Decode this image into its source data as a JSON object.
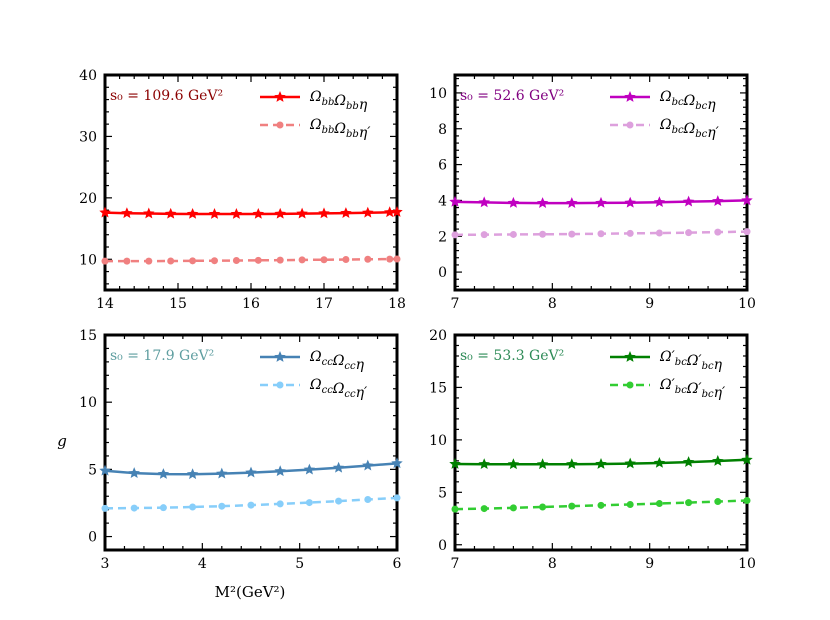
{
  "figure": {
    "ylabel": "g",
    "xlabel": "M²(GeV²)"
  },
  "chart_data": [
    {
      "type": "line",
      "xlim": [
        14,
        18
      ],
      "ylim": [
        5,
        40
      ],
      "xticks": [
        "14",
        "15",
        "16",
        "17",
        "18"
      ],
      "yticks": [
        "10",
        "20",
        "30",
        "40"
      ],
      "annotation": "s₀ = 109.6 GeV²",
      "annotation_color": "#8b0000",
      "legend_placement": "top-right",
      "series": [
        {
          "name": "ΩbbΩbbη",
          "color": "#ff0000",
          "dashed": false,
          "marker": "star",
          "x": [
            14.0,
            14.3,
            14.6,
            14.9,
            15.2,
            15.5,
            15.8,
            16.1,
            16.4,
            16.7,
            17.0,
            17.3,
            17.6,
            17.9,
            18.0
          ],
          "y": [
            17.6,
            17.5,
            17.45,
            17.4,
            17.38,
            17.37,
            17.37,
            17.38,
            17.4,
            17.43,
            17.47,
            17.52,
            17.58,
            17.65,
            17.7
          ]
        },
        {
          "name": "ΩbbΩbbη′",
          "color": "#f08080",
          "dashed": true,
          "marker": "circle",
          "x": [
            14.0,
            14.3,
            14.6,
            14.9,
            15.2,
            15.5,
            15.8,
            16.1,
            16.4,
            16.7,
            17.0,
            17.3,
            17.6,
            17.9,
            18.0
          ],
          "y": [
            9.7,
            9.7,
            9.7,
            9.72,
            9.75,
            9.77,
            9.8,
            9.83,
            9.86,
            9.9,
            9.93,
            9.96,
            10.0,
            10.03,
            10.05
          ]
        }
      ]
    },
    {
      "type": "line",
      "xlim": [
        7,
        10
      ],
      "ylim": [
        -1,
        11
      ],
      "xticks": [
        "7",
        "8",
        "9",
        "10"
      ],
      "yticks": [
        "0",
        "2",
        "4",
        "6",
        "8",
        "10"
      ],
      "annotation": "s₀ = 52.6 GeV²",
      "annotation_color": "#800080",
      "legend_placement": "top-right",
      "series": [
        {
          "name": "ΩbcΩbcη",
          "color": "#c000c0",
          "dashed": false,
          "marker": "star",
          "x": [
            7.0,
            7.3,
            7.6,
            7.9,
            8.2,
            8.5,
            8.8,
            9.1,
            9.4,
            9.7,
            10.0
          ],
          "y": [
            3.92,
            3.89,
            3.86,
            3.85,
            3.85,
            3.86,
            3.87,
            3.9,
            3.93,
            3.96,
            4.0
          ]
        },
        {
          "name": "ΩbcΩbcη′",
          "color": "#dda0dd",
          "dashed": true,
          "marker": "circle",
          "x": [
            7.0,
            7.3,
            7.6,
            7.9,
            8.2,
            8.5,
            8.8,
            9.1,
            9.4,
            9.7,
            10.0
          ],
          "y": [
            2.08,
            2.09,
            2.1,
            2.11,
            2.12,
            2.14,
            2.16,
            2.18,
            2.2,
            2.23,
            2.26
          ]
        }
      ]
    },
    {
      "type": "line",
      "xlim": [
        3,
        6
      ],
      "ylim": [
        -1,
        15
      ],
      "xticks": [
        "3",
        "4",
        "5",
        "6"
      ],
      "yticks": [
        "0",
        "5",
        "10",
        "15"
      ],
      "annotation": "s₀ = 17.9 GeV²",
      "annotation_color": "#5f9ea0",
      "legend_placement": "top-right",
      "series": [
        {
          "name": "ΩccΩccη",
          "color": "#4682b4",
          "dashed": false,
          "marker": "star",
          "x": [
            3.0,
            3.3,
            3.6,
            3.9,
            4.2,
            4.5,
            4.8,
            5.1,
            5.4,
            5.7,
            6.0
          ],
          "y": [
            4.9,
            4.72,
            4.65,
            4.64,
            4.68,
            4.76,
            4.86,
            4.98,
            5.12,
            5.28,
            5.45
          ]
        },
        {
          "name": "ΩccΩccη′",
          "color": "#87cefa",
          "dashed": true,
          "marker": "circle",
          "x": [
            3.0,
            3.3,
            3.6,
            3.9,
            4.2,
            4.5,
            4.8,
            5.1,
            5.4,
            5.7,
            6.0
          ],
          "y": [
            2.1,
            2.12,
            2.15,
            2.2,
            2.26,
            2.34,
            2.43,
            2.53,
            2.64,
            2.76,
            2.88
          ]
        }
      ]
    },
    {
      "type": "line",
      "xlim": [
        7,
        10
      ],
      "ylim": [
        -0.5,
        20
      ],
      "xticks": [
        "7",
        "8",
        "9",
        "10"
      ],
      "yticks": [
        "0",
        "5",
        "10",
        "15",
        "20"
      ],
      "annotation": "s₀ = 53.3 GeV²",
      "annotation_color": "#2e8b57",
      "legend_placement": "top-right",
      "series": [
        {
          "name": "Ω′bcΩ′bcη",
          "color": "#008000",
          "dashed": false,
          "marker": "star",
          "x": [
            7.0,
            7.3,
            7.6,
            7.9,
            8.2,
            8.5,
            8.8,
            9.1,
            9.4,
            9.7,
            10.0
          ],
          "y": [
            7.7,
            7.68,
            7.67,
            7.67,
            7.68,
            7.7,
            7.74,
            7.8,
            7.88,
            7.98,
            8.1
          ]
        },
        {
          "name": "Ω′bcΩ′bcη′",
          "color": "#32cd32",
          "dashed": true,
          "marker": "circle",
          "x": [
            7.0,
            7.3,
            7.6,
            7.9,
            8.2,
            8.5,
            8.8,
            9.1,
            9.4,
            9.7,
            10.0
          ],
          "y": [
            3.4,
            3.45,
            3.52,
            3.6,
            3.68,
            3.76,
            3.84,
            3.93,
            4.02,
            4.12,
            4.22
          ]
        }
      ]
    }
  ]
}
